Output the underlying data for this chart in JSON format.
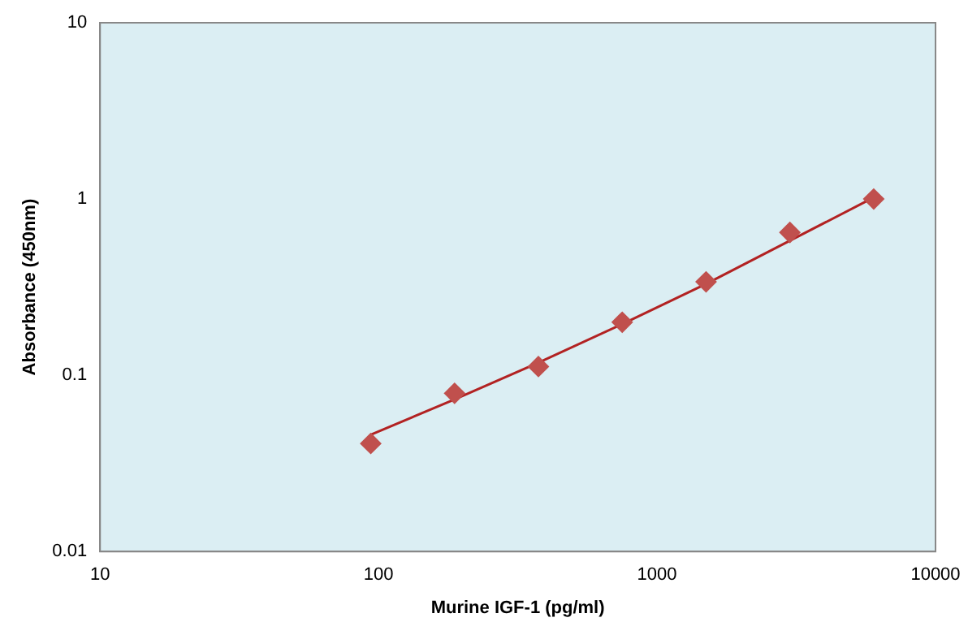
{
  "chart_data": {
    "type": "scatter",
    "xlabel": "Murine IGF-1 (pg/ml)",
    "ylabel": "Absorbance (450nm)",
    "log": "xy",
    "xlim": [
      10,
      10000
    ],
    "ylim": [
      0.01,
      10
    ],
    "xticks": [
      10,
      100,
      1000,
      10000
    ],
    "yticks": [
      0.01,
      0.1,
      1,
      10
    ],
    "series": [
      {
        "type": "line",
        "color": "#b22222",
        "marker": "none",
        "x": [
          93.75,
          187.5,
          375,
          750,
          1500,
          3000,
          6000
        ],
        "values": [
          0.046,
          0.073,
          0.118,
          0.195,
          0.33,
          0.58,
          1.02
        ]
      },
      {
        "type": "scatter",
        "color": "#c0504d",
        "marker": "diamond",
        "x": [
          93.75,
          187.5,
          375,
          750,
          1500,
          3000,
          6000
        ],
        "values": [
          0.041,
          0.079,
          0.112,
          0.2,
          0.339,
          0.646,
          1.0
        ]
      }
    ]
  }
}
